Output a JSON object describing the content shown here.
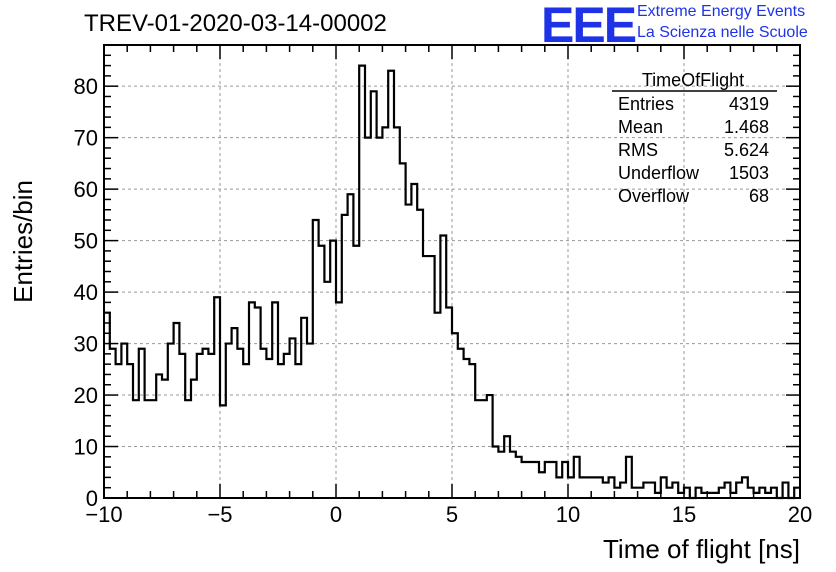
{
  "header": {
    "run_title": "TREV-01-2020-03-14-00002",
    "logo": {
      "mark": "EEE",
      "line1": "Extreme Energy Events",
      "line2": "La Scienza nelle Scuole",
      "color": "#1f33e6"
    }
  },
  "stats_box": {
    "title": "TimeOfFlight",
    "rows": [
      {
        "label": "Entries",
        "value": "4319"
      },
      {
        "label": "Mean",
        "value": "1.468"
      },
      {
        "label": "RMS",
        "value": "5.624"
      },
      {
        "label": "Underflow",
        "value": "1503"
      },
      {
        "label": "Overflow",
        "value": "68"
      }
    ]
  },
  "chart_data": {
    "type": "histogram",
    "title": "",
    "xlabel": "Time of flight [ns]",
    "ylabel": "Entries/bin",
    "xlim": [
      -10,
      20
    ],
    "ylim": [
      0,
      88
    ],
    "xticks": [
      -10,
      -5,
      0,
      5,
      10,
      15,
      20
    ],
    "yticks": [
      0,
      10,
      20,
      30,
      40,
      50,
      60,
      70,
      80
    ],
    "grid": true,
    "line_color": "#000000",
    "bin_width": 0.25,
    "bin_start": -10,
    "values": [
      36,
      29,
      26,
      30,
      26,
      19,
      29,
      19,
      19,
      24,
      23,
      30,
      34,
      28,
      19,
      23,
      28,
      29,
      28,
      39,
      18,
      30,
      33,
      29,
      26,
      38,
      37,
      29,
      27,
      38,
      26,
      28,
      31,
      26,
      35,
      30,
      54,
      49,
      42,
      50,
      38,
      55,
      59,
      49,
      84,
      70,
      79,
      70,
      72,
      83,
      72,
      65,
      57,
      61,
      56,
      47,
      47,
      36,
      51,
      37,
      32,
      29,
      27,
      26,
      19,
      19,
      20,
      10,
      9,
      12,
      9,
      8,
      7,
      7,
      7,
      5,
      7,
      7,
      4,
      7,
      4,
      8,
      4,
      4,
      4,
      4,
      3,
      4,
      2,
      3,
      8,
      2,
      2,
      3,
      3,
      1,
      4,
      2,
      3,
      1,
      2,
      0,
      2,
      1,
      1,
      1,
      2,
      3,
      1,
      3,
      4,
      2,
      1,
      2,
      1,
      2,
      0,
      3,
      0,
      2
    ]
  }
}
